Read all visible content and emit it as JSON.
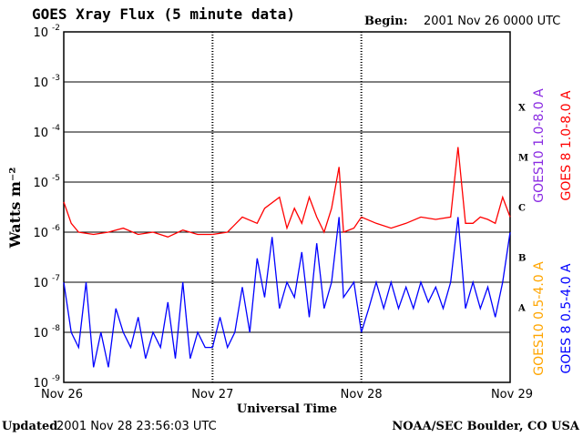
{
  "header": {
    "title": "GOES Xray Flux (5 minute data)",
    "begin_label": "Begin:",
    "begin_value": "2001 Nov 26 0000 UTC"
  },
  "footer": {
    "updated_label": "Updated",
    "updated_value": "2001 Nov 28 23:56:03 UTC",
    "source": "NOAA/SEC Boulder, CO USA"
  },
  "colors": {
    "goes10_long": "#8a2be2",
    "goes8_long": "#ff0000",
    "goes10_short": "#ffa500",
    "goes8_short": "#0000ff"
  },
  "chart_data": {
    "type": "line",
    "title": "GOES Xray Flux (5 minute data)",
    "xlabel": "Universal Time",
    "ylabel": "Watts m⁻²",
    "y_scale": "log",
    "ylim": [
      1e-09,
      0.01
    ],
    "xlim_days": [
      "Nov 26",
      "Nov 29"
    ],
    "x_ticks": [
      "Nov 26",
      "Nov 27",
      "Nov 28",
      "Nov 29"
    ],
    "y_ticks": [
      {
        "base": "10",
        "exp": "-2"
      },
      {
        "base": "10",
        "exp": "-3"
      },
      {
        "base": "10",
        "exp": "-4"
      },
      {
        "base": "10",
        "exp": "-5"
      },
      {
        "base": "10",
        "exp": "-6"
      },
      {
        "base": "10",
        "exp": "-7"
      },
      {
        "base": "10",
        "exp": "-8"
      },
      {
        "base": "10",
        "exp": "-9"
      }
    ],
    "flare_classes": [
      "X",
      "M",
      "C",
      "B",
      "A"
    ],
    "grid": true,
    "legend": [
      {
        "name": "GOES10 1.0-8.0 A",
        "color": "#8a2be2"
      },
      {
        "name": "GOES 8 1.0-8.0 A",
        "color": "#ff0000"
      },
      {
        "name": "GOES10 0.5-4.0 A",
        "color": "#ffa500"
      },
      {
        "name": "GOES 8 0.5-4.0 A",
        "color": "#0000ff"
      }
    ],
    "series": [
      {
        "name": "GOES 8 1.0-8.0 A",
        "x": [
          0,
          0.05,
          0.1,
          0.2,
          0.3,
          0.4,
          0.5,
          0.6,
          0.7,
          0.8,
          0.9,
          1.0,
          1.1,
          1.2,
          1.3,
          1.35,
          1.45,
          1.5,
          1.55,
          1.6,
          1.65,
          1.7,
          1.75,
          1.8,
          1.85,
          1.88,
          1.95,
          2.0,
          2.1,
          2.2,
          2.3,
          2.4,
          2.5,
          2.6,
          2.65,
          2.7,
          2.75,
          2.8,
          2.85,
          2.9,
          2.95,
          3.0
        ],
        "values": [
          4e-06,
          1.5e-06,
          1e-06,
          9e-07,
          1e-06,
          1.2e-06,
          9e-07,
          1e-06,
          8e-07,
          1.1e-06,
          9e-07,
          9e-07,
          1e-06,
          2e-06,
          1.5e-06,
          3e-06,
          5e-06,
          1.2e-06,
          3e-06,
          1.5e-06,
          5e-06,
          2e-06,
          1e-06,
          3e-06,
          2e-05,
          1e-06,
          1.2e-06,
          2e-06,
          1.5e-06,
          1.2e-06,
          1.5e-06,
          2e-06,
          1.8e-06,
          2e-06,
          5e-05,
          1.5e-06,
          1.5e-06,
          2e-06,
          1.8e-06,
          1.5e-06,
          5e-06,
          2e-06
        ]
      },
      {
        "name": "GOES 8 0.5-4.0 A",
        "x": [
          0,
          0.05,
          0.1,
          0.15,
          0.2,
          0.25,
          0.3,
          0.35,
          0.4,
          0.45,
          0.5,
          0.55,
          0.6,
          0.65,
          0.7,
          0.75,
          0.8,
          0.85,
          0.9,
          0.95,
          1.0,
          1.05,
          1.1,
          1.15,
          1.2,
          1.25,
          1.3,
          1.35,
          1.4,
          1.45,
          1.5,
          1.55,
          1.6,
          1.65,
          1.7,
          1.75,
          1.8,
          1.85,
          1.88,
          1.95,
          2.0,
          2.05,
          2.1,
          2.15,
          2.2,
          2.25,
          2.3,
          2.35,
          2.4,
          2.45,
          2.5,
          2.55,
          2.6,
          2.65,
          2.7,
          2.75,
          2.8,
          2.85,
          2.9,
          2.95,
          3.0
        ],
        "values": [
          1e-07,
          1e-08,
          5e-09,
          1e-07,
          2e-09,
          1e-08,
          2e-09,
          3e-08,
          1e-08,
          5e-09,
          2e-08,
          3e-09,
          1e-08,
          5e-09,
          4e-08,
          3e-09,
          1e-07,
          3e-09,
          1e-08,
          5e-09,
          5e-09,
          2e-08,
          5e-09,
          1e-08,
          8e-08,
          1e-08,
          3e-07,
          5e-08,
          8e-07,
          3e-08,
          1e-07,
          5e-08,
          4e-07,
          2e-08,
          6e-07,
          3e-08,
          1e-07,
          2e-06,
          5e-08,
          1e-07,
          1e-08,
          3e-08,
          1e-07,
          3e-08,
          1e-07,
          3e-08,
          8e-08,
          3e-08,
          1e-07,
          4e-08,
          8e-08,
          3e-08,
          1e-07,
          2e-06,
          3e-08,
          1e-07,
          3e-08,
          8e-08,
          2e-08,
          1e-07,
          1e-06
        ]
      }
    ]
  }
}
